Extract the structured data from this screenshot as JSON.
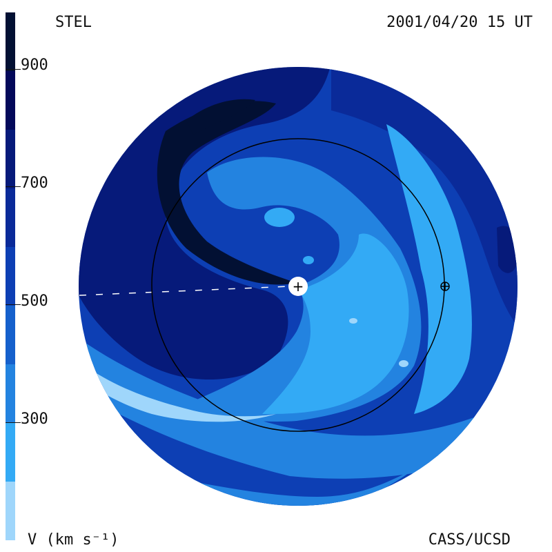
{
  "header": {
    "source_label": "STEL",
    "timestamp": "2001/04/20 15 UT"
  },
  "footer": {
    "units_label": "V (km s⁻¹)",
    "credit": "CASS/UCSD"
  },
  "colorbar": {
    "ticks": [
      "900",
      "700",
      "500",
      "300"
    ],
    "levels": [
      {
        "color": "#021033"
      },
      {
        "color": "#03095a"
      },
      {
        "color": "#061a7a"
      },
      {
        "color": "#0a2a99"
      },
      {
        "color": "#0d3fb4"
      },
      {
        "color": "#1560cc"
      },
      {
        "color": "#2383e0"
      },
      {
        "color": "#33aaf5"
      },
      {
        "color": "#9fd6fb"
      }
    ]
  },
  "map": {
    "markers": [
      {
        "symbol": "+",
        "name": "sun"
      },
      {
        "symbol": "⊕",
        "name": "earth"
      }
    ],
    "colors": {
      "darkest": "#021033",
      "dark": "#061a7a",
      "mid_dark": "#0a2a99",
      "mid": "#0d3fb4",
      "mid_light": "#1560cc",
      "light": "#2383e0",
      "lighter": "#33aaf5",
      "lightest": "#9fd6fb",
      "orbit": "#000000"
    }
  }
}
